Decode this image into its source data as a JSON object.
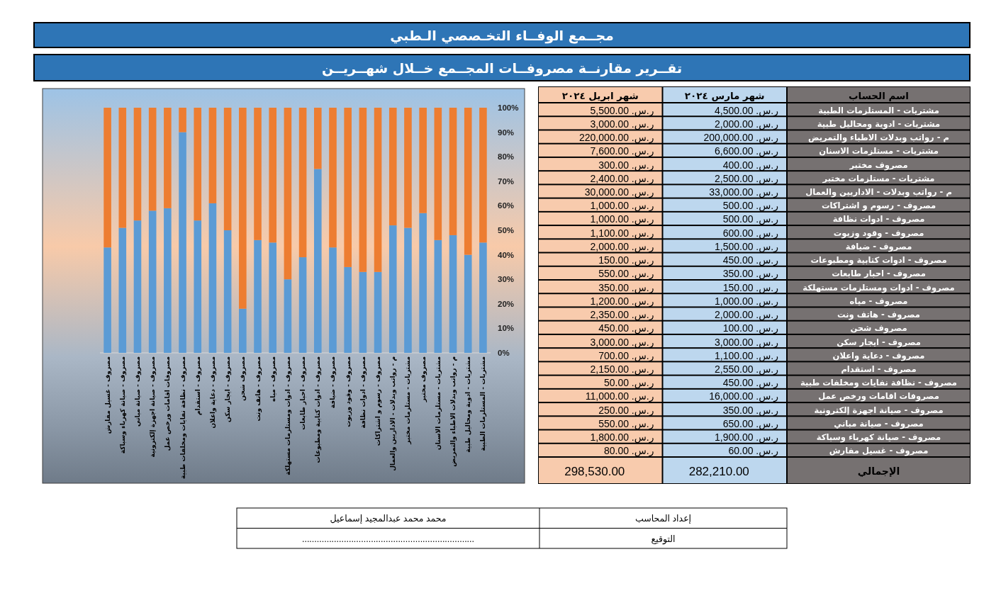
{
  "chart_data": [
    {
      "type": "bar",
      "title": "مجــمع الوفــاء التخـصصي الـطبي",
      "subtitle": "تقــرير مقارنــة مصروفــات المجــمع خــلال شهــريــن",
      "stacked": true,
      "categories": [
        "مصروف - غسيل مفارش",
        "مصروف - صيانة كهرباء وسباكة",
        "مصروف - صيانة مباني",
        "مصروف - صيانة اجهزة إلكترونية",
        "مصروفات اقامات ورخص عمل",
        "مصروف - نظافة نفايات ومخلفات طبية",
        "مصروف - استقدام",
        "مصروف - دعاية واعلان",
        "مصروف - ايجار سكن",
        "مصروف شحن",
        "مصروف - هاتف ونت",
        "مصروف - مياه",
        "مصروف - ادوات ومستلزمات مستهلكة",
        "مصروف - احبار طابعات",
        "مصروف - ادوات كتابية ومطبوعات",
        "مصروف - ضيافة",
        "مصروف - وقود وزيوت",
        "مصروف - ادوات نظافة",
        "مصروف - رسوم و اشتراكات",
        "م - رواتب وبدلات - الاداريين والعمال",
        "مشتريات - مستلزمات مختبر",
        "مصروف مختبر",
        "مشتريات - مستلزمات الاسنان",
        "م - رواتب وبدلات الاطباء والتمريض",
        "مشتريات - ادوية ومحاليل طبية",
        "مشتريات - المستلزمات الطبية"
      ],
      "series": [
        {
          "color": "#5b9bd5",
          "values": [
            43,
            51,
            54,
            58,
            59,
            90,
            54,
            61,
            50,
            18,
            46,
            45,
            30,
            39,
            75,
            43,
            35,
            33,
            33,
            52,
            51,
            57,
            46,
            48,
            40,
            45
          ]
        },
        {
          "color": "#ed7d31",
          "values": [
            57,
            49,
            46,
            42,
            41,
            10,
            46,
            39,
            50,
            82,
            54,
            55,
            70,
            61,
            25,
            57,
            65,
            67,
            67,
            48,
            49,
            43,
            54,
            52,
            60,
            55
          ]
        }
      ],
      "ylim": [
        0,
        100
      ],
      "yticks": [
        {
          "value": 0,
          "label": "0%"
        },
        {
          "value": 10,
          "label": "10%"
        },
        {
          "value": 20,
          "label": "20%"
        },
        {
          "value": 30,
          "label": "30%"
        },
        {
          "value": 40,
          "label": "40%"
        },
        {
          "value": 50,
          "label": "50%"
        },
        {
          "value": 60,
          "label": "60%"
        },
        {
          "value": 70,
          "label": "70%"
        },
        {
          "value": 80,
          "label": "80%"
        },
        {
          "value": 90,
          "label": "90%"
        },
        {
          "value": 100,
          "label": "100%"
        }
      ]
    },
    {
      "type": "other",
      "annotations": [
        "اسم الحساب",
        "شهر مارس ٢٠٢٤",
        "شهر ابريل ٢٠٢٤",
        "مشتريات - المستلزمات الطبية",
        "ر.س. 4,500.00",
        "ر.س. 5,500.00",
        "مشتريات - ادوية ومحاليل طبية",
        "ر.س. 2,000.00",
        "ر.س. 3,000.00",
        "م - رواتب وبدلات الاطباء والتمريض",
        "ر.س. 200,000.00",
        "ر.س. 220,000.00",
        "مشتريات - مستلزمات الاسنان",
        "ر.س. 6,600.00",
        "ر.س. 7,600.00",
        "مصروف مختبر",
        "ر.س. 400.00",
        "ر.س. 300.00",
        "مشتريات - مستلزمات مختبر",
        "ر.س. 2,500.00",
        "ر.س. 2,400.00",
        "م - رواتب وبدلات - الاداريين والعمال",
        "ر.س. 33,000.00",
        "ر.س. 30,000.00",
        "مصروف - رسوم و اشتراكات",
        "ر.س. 500.00",
        "ر.س. 1,000.00",
        "مصروف - ادوات نظافة",
        "ر.س. 500.00",
        "ر.س. 1,000.00",
        "مصروف - وقود وزيوت",
        "ر.س. 600.00",
        "ر.س. 1,100.00",
        "مصروف - ضيافة",
        "ر.س. 1,500.00",
        "ر.س. 2,000.00",
        "مصروف - ادوات كتابية ومطبوعات",
        "ر.س. 450.00",
        "ر.س. 150.00",
        "مصروف - احبار طابعات",
        "ر.س. 350.00",
        "ر.س. 550.00",
        "مصروف - ادوات ومستلزمات مستهلكة",
        "ر.س. 150.00",
        "ر.س. 350.00",
        "مصروف - مياه",
        "ر.س. 1,000.00",
        "ر.س. 1,200.00",
        "مصروف - هاتف ونت",
        "ر.س. 2,000.00",
        "ر.س. 2,350.00",
        "مصروف شحن",
        "ر.س. 100.00",
        "ر.س. 450.00",
        "مصروف - ايجار سكن",
        "ر.س. 3,000.00",
        "ر.س. 3,000.00",
        "مصروف - دعاية واعلان",
        "ر.س. 1,100.00",
        "ر.س. 700.00",
        "مصروف - استقدام",
        "ر.س. 2,550.00",
        "ر.س. 2,150.00",
        "مصروف - نظافة نفايات ومخلفات طبية",
        "ر.س. 450.00",
        "ر.س. 50.00",
        "مصروفات اقامات ورخص عمل",
        "ر.س. 16,000.00",
        "ر.س. 11,000.00",
        "مصروف - صيانة اجهزة إلكترونية",
        "ر.س. 350.00",
        "ر.س. 250.00",
        "مصروف - صيانة مباني",
        "ر.س. 650.00",
        "ر.س. 550.00",
        "مصروف - صيانة كهرباء وسباكة",
        "ر.س. 1,900.00",
        "ر.س. 1,800.00",
        "مصروف - غسيل مفارش",
        "ر.س. 60.00",
        "ر.س. 80.00",
        "الإجمالي",
        "282,210.00",
        "298,530.00"
      ]
    },
    {
      "type": "other",
      "annotations": [
        "إعداد المحاسب",
        "محمد محمد عبدالمجيد إسماعيل",
        "التوقيع",
        "......................................................................"
      ]
    }
  ]
}
